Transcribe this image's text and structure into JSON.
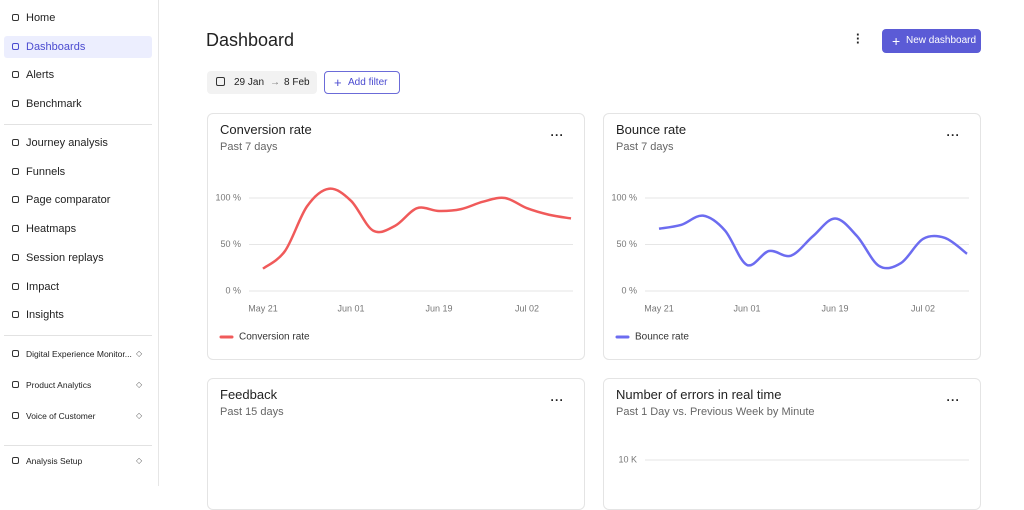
{
  "sidebar": {
    "main": [
      "Home",
      "Dashboards",
      "Alerts",
      "Benchmark"
    ],
    "tools": [
      "Journey analysis",
      "Funnels",
      "Page comparator",
      "Heatmaps",
      "Session replays",
      "Impact",
      "Insights"
    ],
    "products": [
      "Digital Experience Monitor...",
      "Product Analytics",
      "Voice of Customer"
    ],
    "setup": "Analysis Setup"
  },
  "header": {
    "title": "Dashboard",
    "button": "New dashboard",
    "date_from": "29 Jan",
    "date_to": "8 Feb",
    "filter": "Add filter"
  },
  "cards": [
    {
      "title": "Conversion rate",
      "subtitle": "Past 7 days",
      "chart_data": {
        "type": "line",
        "categories": [
          "May 21",
          null,
          null,
          null,
          "Jun 01",
          null,
          null,
          null,
          "Jun 19",
          null,
          null,
          null,
          "Jul 02",
          null,
          null
        ],
        "series": [
          {
            "name": "Conversion rate",
            "color": "#f05a5a",
            "values": [
              24,
              43,
              91,
              110,
              97,
              65,
              70,
              89,
              86,
              88,
              96,
              100,
              89,
              82,
              78
            ]
          }
        ],
        "ylim": [
          0,
          100
        ],
        "yticks": [
          {
            "value": 0,
            "label": "0 %"
          },
          {
            "value": 50,
            "label": "50 %"
          },
          {
            "value": 100,
            "label": "100 %"
          }
        ],
        "grid": true
      }
    },
    {
      "title": "Bounce rate",
      "subtitle": "Past 7 days",
      "chart_data": {
        "type": "line",
        "categories": [
          "May 21",
          null,
          null,
          null,
          "Jun 01",
          null,
          null,
          null,
          "Jun 19",
          null,
          null,
          null,
          "Jul 02",
          null,
          null
        ],
        "series": [
          {
            "name": "Bounce rate",
            "color": "#6c6cf0",
            "values": [
              67,
              71,
              81,
              65,
              28,
              43,
              38,
              59,
              78,
              59,
              27,
              30,
              56,
              57,
              40
            ]
          }
        ],
        "ylim": [
          0,
          100
        ],
        "yticks": [
          {
            "value": 0,
            "label": "0 %"
          },
          {
            "value": 50,
            "label": "50 %"
          },
          {
            "value": 100,
            "label": "100 %"
          }
        ],
        "grid": true
      }
    },
    {
      "title": "Feedback",
      "subtitle": "Past 15 days"
    },
    {
      "title": "Number of errors in real time",
      "subtitle": "Past 1 Day vs. Previous Week by Minute",
      "axis_label": "10 K"
    }
  ]
}
